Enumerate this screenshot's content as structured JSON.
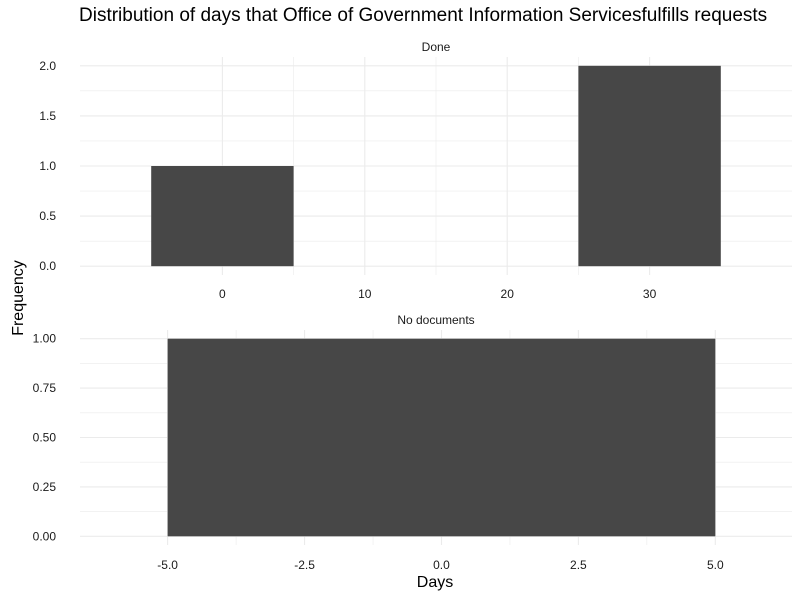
{
  "chart_data": {
    "type": "bar",
    "title": "Distribution of days that Office of Government Information Servicesfulfills requests",
    "xlabel": "Days",
    "ylabel": "Frequency",
    "bar_color": "#474747",
    "grid_color": "#ebebeb",
    "grid": true,
    "panels": [
      {
        "strip": "Done",
        "bars": [
          {
            "x_start": -5,
            "x_end": 5,
            "value": 1
          },
          {
            "x_start": 25,
            "x_end": 35,
            "value": 2
          }
        ],
        "xlim": [
          -10,
          40
        ],
        "ylim": [
          0,
          2
        ],
        "x_ticks": [
          {
            "value": 0,
            "label": "0"
          },
          {
            "value": 10,
            "label": "10"
          },
          {
            "value": 20,
            "label": "20"
          },
          {
            "value": 30,
            "label": "30"
          }
        ],
        "y_ticks": [
          {
            "value": 0,
            "label": "0.0"
          },
          {
            "value": 0.5,
            "label": "0.5"
          },
          {
            "value": 1,
            "label": "1.0"
          },
          {
            "value": 1.5,
            "label": "1.5"
          },
          {
            "value": 2,
            "label": "2.0"
          }
        ]
      },
      {
        "strip": "No documents",
        "bars": [
          {
            "x_start": -5,
            "x_end": 5,
            "value": 1
          }
        ],
        "xlim": [
          -6.6,
          6.4
        ],
        "ylim": [
          0,
          1
        ],
        "x_ticks": [
          {
            "value": -5,
            "label": "-5.0"
          },
          {
            "value": -2.5,
            "label": "-2.5"
          },
          {
            "value": 0,
            "label": "0.0"
          },
          {
            "value": 2.5,
            "label": "2.5"
          },
          {
            "value": 5,
            "label": "5.0"
          }
        ],
        "y_ticks": [
          {
            "value": 0,
            "label": "0.00"
          },
          {
            "value": 0.25,
            "label": "0.25"
          },
          {
            "value": 0.5,
            "label": "0.50"
          },
          {
            "value": 0.75,
            "label": "0.75"
          },
          {
            "value": 1,
            "label": "1.00"
          }
        ]
      }
    ]
  }
}
